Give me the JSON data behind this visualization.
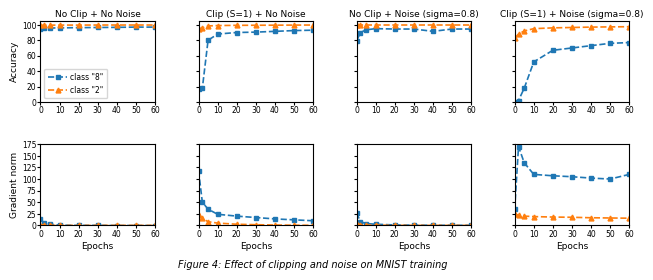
{
  "titles": [
    "No Clip + No Noise",
    "Clip (S=1) + No Noise",
    "No Clip + Noise (sigma=0.8)",
    "Clip (S=1) + Noise (sigma=0.8)"
  ],
  "epochs_acc": [
    0,
    2,
    5,
    10,
    20,
    30,
    40,
    50,
    60
  ],
  "epochs_grad": [
    0,
    2,
    5,
    10,
    20,
    30,
    40,
    50,
    60
  ],
  "accuracy": {
    "class8": {
      "no_clip_no_noise": [
        95.0,
        95.5,
        95.8,
        96.0,
        96.3,
        96.5,
        96.7,
        97.0,
        97.0
      ],
      "clip_no_noise": [
        17.0,
        18.0,
        80.0,
        88.0,
        90.0,
        90.5,
        91.5,
        92.5,
        93.0
      ],
      "no_clip_noise": [
        79.0,
        90.0,
        93.5,
        95.0,
        94.5,
        94.5,
        91.5,
        94.5,
        94.5
      ],
      "clip_noise": [
        0.0,
        2.0,
        18.0,
        52.0,
        67.0,
        70.0,
        73.0,
        76.0,
        77.0
      ]
    },
    "class2": {
      "no_clip_no_noise": [
        99.5,
        99.5,
        99.5,
        99.6,
        99.6,
        99.7,
        99.7,
        99.7,
        99.7
      ],
      "clip_no_noise": [
        94.0,
        96.0,
        98.5,
        99.0,
        99.3,
        99.4,
        99.5,
        99.6,
        99.7
      ],
      "no_clip_noise": [
        99.5,
        99.5,
        99.5,
        99.5,
        99.5,
        99.5,
        99.5,
        99.5,
        99.5
      ],
      "clip_noise": [
        83.0,
        88.0,
        92.0,
        95.0,
        96.0,
        96.5,
        97.0,
        97.3,
        97.5
      ]
    }
  },
  "gradient": {
    "class8": {
      "no_clip_no_noise": [
        13.0,
        5.0,
        2.5,
        0.5,
        0.0,
        0.0,
        -0.3,
        -0.3,
        -0.3
      ],
      "clip_no_noise": [
        118.0,
        50.0,
        35.0,
        24.0,
        20.0,
        17.0,
        14.0,
        12.0,
        10.0
      ],
      "no_clip_noise": [
        27.0,
        8.0,
        4.0,
        2.5,
        1.0,
        0.5,
        0.3,
        0.2,
        0.2
      ],
      "clip_noise": [
        35.0,
        170.0,
        135.0,
        110.0,
        107.0,
        105.0,
        102.0,
        100.0,
        110.0
      ]
    },
    "class2": {
      "no_clip_no_noise": [
        1.5,
        0.5,
        0.2,
        0.0,
        0.0,
        0.0,
        0.0,
        0.0,
        0.0
      ],
      "clip_no_noise": [
        22.0,
        15.0,
        8.0,
        5.0,
        2.5,
        1.5,
        0.8,
        0.4,
        0.2
      ],
      "no_clip_noise": [
        3.0,
        1.5,
        0.8,
        0.5,
        0.2,
        0.1,
        0.1,
        0.0,
        0.0
      ],
      "clip_noise": [
        25.0,
        22.0,
        20.0,
        19.0,
        18.0,
        17.5,
        16.5,
        16.0,
        15.5
      ]
    }
  },
  "color_blue": "#1f77b4",
  "color_orange": "#ff7f0e",
  "xlabel": "Epochs",
  "ylabel_acc": "Accuracy",
  "ylabel_grad": "Gradient norm",
  "legend_class8": "class \"8\"",
  "legend_class2": "class \"2\"",
  "xlim": [
    0,
    60
  ],
  "ylim_acc": [
    0,
    105
  ],
  "ylim_grad": [
    0,
    175
  ],
  "yticks_acc": [
    0,
    20,
    40,
    60,
    80,
    100
  ],
  "yticks_grad": [
    0,
    25,
    50,
    75,
    100,
    125,
    150,
    175
  ],
  "xticks": [
    0,
    10,
    20,
    30,
    40,
    50,
    60
  ],
  "figcaption": "Figure 4: Effect of clipping and noise on MNIST training"
}
